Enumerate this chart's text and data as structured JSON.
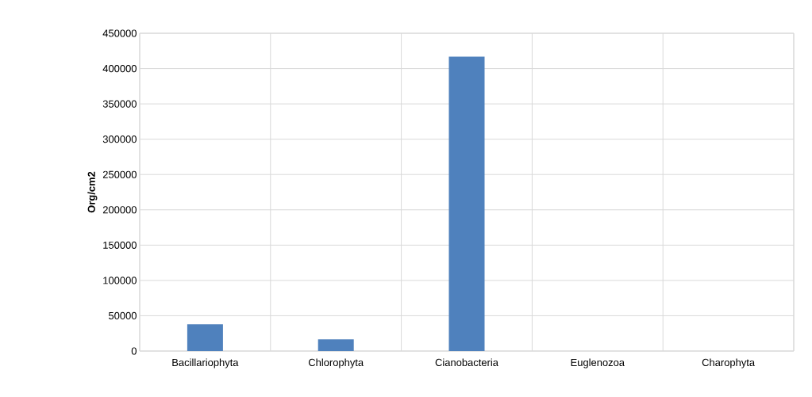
{
  "chart_data": {
    "type": "bar",
    "ylabel": "Org/cm2",
    "categories": [
      "Bacillariophyta",
      "Chlorophyta",
      "Cianobacteria",
      "Euglenozoa",
      "Charophyta"
    ],
    "values": [
      38000,
      16500,
      417000,
      0,
      0
    ],
    "color": "#4f81bd",
    "ylim": [
      0,
      450000
    ],
    "yticks": [
      0,
      50000,
      100000,
      150000,
      200000,
      250000,
      300000,
      350000,
      400000,
      450000
    ],
    "grid": true
  }
}
